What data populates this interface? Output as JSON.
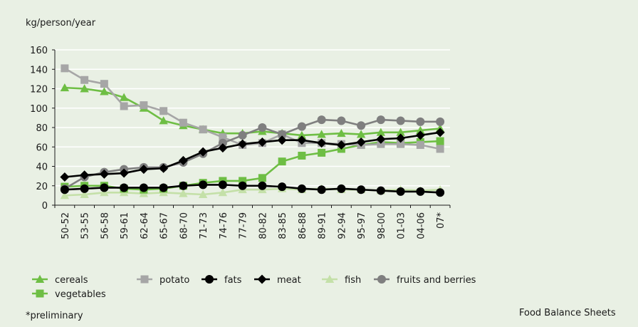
{
  "chart_data": {
    "type": "line",
    "ylabel": "kg/person/year",
    "ylim": [
      0,
      160
    ],
    "yticks": [
      0,
      20,
      40,
      60,
      80,
      100,
      120,
      140,
      160
    ],
    "grid": true,
    "legend_position": "bottom",
    "categories": [
      "50-52",
      "53-55",
      "56-58",
      "59-61",
      "62-64",
      "65-67",
      "68-70",
      "71-73",
      "74-76",
      "77-79",
      "80-82",
      "83-85",
      "86-88",
      "89-91",
      "92-94",
      "95-97",
      "98-00",
      "01-03",
      "04-06",
      "07*"
    ],
    "series": [
      {
        "name": "cereals",
        "color": "#6ebe44",
        "marker": "triangle",
        "values": [
          121,
          120,
          117,
          111,
          100,
          87,
          82,
          78,
          74,
          74,
          76,
          74,
          72,
          73,
          74,
          73,
          75,
          75,
          77,
          79
        ]
      },
      {
        "name": "potato",
        "color": "#a6a6a6",
        "marker": "square",
        "values": [
          141,
          129,
          125,
          102,
          103,
          97,
          85,
          78,
          70,
          62,
          64,
          73,
          64,
          64,
          63,
          62,
          63,
          63,
          62,
          58
        ]
      },
      {
        "name": "fats",
        "color": "#000000",
        "marker": "circle",
        "values": [
          16,
          17,
          18,
          18,
          18,
          18,
          20,
          21,
          21,
          20,
          20,
          19,
          17,
          16,
          17,
          16,
          15,
          14,
          14,
          13
        ]
      },
      {
        "name": "meat",
        "color": "#000000",
        "marker": "diamond",
        "values": [
          29,
          31,
          32,
          33,
          37,
          38,
          46,
          55,
          59,
          63,
          65,
          67,
          67,
          64,
          62,
          65,
          68,
          69,
          72,
          75
        ]
      },
      {
        "name": "fish",
        "color": "#c4e0a8",
        "marker": "triangle",
        "values": [
          10,
          11,
          13,
          13,
          12,
          13,
          12,
          11,
          13,
          16,
          16,
          17,
          16,
          17,
          16,
          16,
          15,
          16,
          15,
          16
        ]
      },
      {
        "name": "fruits and berries",
        "color": "#7f7f7f",
        "marker": "circle",
        "values": [
          17,
          29,
          34,
          37,
          39,
          39,
          44,
          53,
          64,
          72,
          80,
          73,
          81,
          88,
          87,
          82,
          88,
          87,
          86,
          86
        ]
      },
      {
        "name": "vegetables",
        "color": "#6ebe44",
        "marker": "square",
        "values": [
          19,
          20,
          20,
          17,
          16,
          17,
          20,
          23,
          25,
          25,
          28,
          45,
          51,
          54,
          58,
          62,
          65,
          64,
          65,
          66
        ]
      }
    ]
  },
  "notes": {
    "footnote": "*preliminary",
    "source": "Food Balance Sheets"
  }
}
